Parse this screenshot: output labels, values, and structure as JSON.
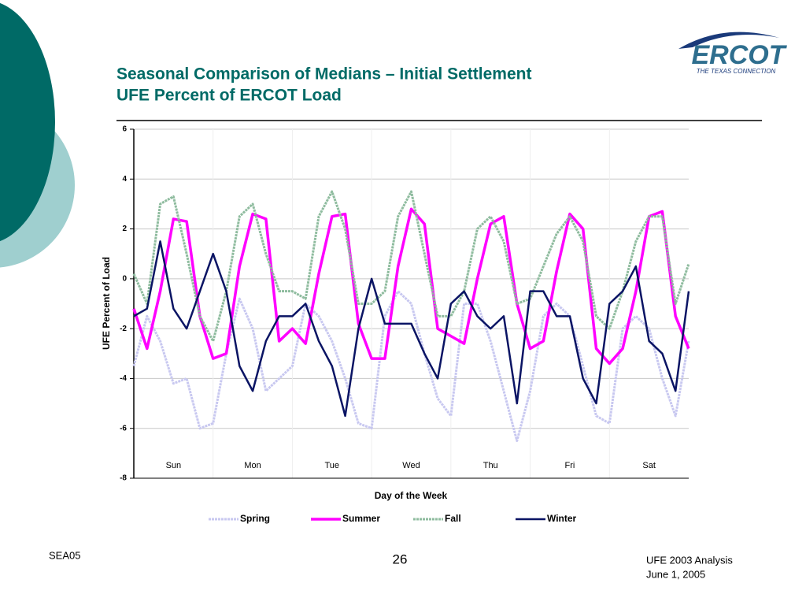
{
  "slide": {
    "title_line1": "Seasonal Comparison of Medians – Initial Settlement",
    "title_line2": "UFE Percent of ERCOT Load",
    "logo": "ERCOT",
    "logo_tagline": "THE TEXAS CONNECTION",
    "footer_left": "SEA05",
    "page_number": "26",
    "footer_right_line1": "UFE 2003 Analysis",
    "footer_right_line2": "June 1, 2005"
  },
  "chart_data": {
    "type": "line",
    "x_label": "Day of the Week",
    "y_label": "UFE Percent of Load",
    "x": [
      0,
      4,
      8,
      12,
      16,
      20,
      24,
      28,
      32,
      36,
      40,
      44,
      48,
      52,
      56,
      60,
      64,
      68,
      72,
      76,
      80,
      84,
      88,
      92,
      96,
      100,
      104,
      108,
      112,
      116,
      120,
      124,
      128,
      132,
      136,
      140,
      144,
      148,
      152,
      156,
      160,
      164,
      168
    ],
    "xlim": [
      0,
      168
    ],
    "xticks": [
      {
        "value": 12,
        "label": "Sun"
      },
      {
        "value": 36,
        "label": "Mon"
      },
      {
        "value": 60,
        "label": "Tue"
      },
      {
        "value": 84,
        "label": "Wed"
      },
      {
        "value": 108,
        "label": "Thu"
      },
      {
        "value": 132,
        "label": "Fri"
      },
      {
        "value": 156,
        "label": "Sat"
      }
    ],
    "ylim": [
      -8,
      6
    ],
    "yticks": [
      -8,
      -6,
      -4,
      -2,
      0,
      2,
      4,
      6
    ],
    "grid": true,
    "legend": "bottom",
    "series": [
      {
        "name": "Spring",
        "color": "#c8c8f0",
        "values": [
          -3.5,
          -1.5,
          -2.5,
          -4.2,
          -4.0,
          -6.0,
          -5.8,
          -3.0,
          -0.8,
          -2.0,
          -4.5,
          -4.0,
          -3.5,
          -1.0,
          -1.5,
          -2.5,
          -4.0,
          -5.8,
          -6.0,
          -1.5,
          -0.5,
          -1.0,
          -3.0,
          -4.8,
          -5.5,
          -1.0,
          -1.0,
          -2.5,
          -4.5,
          -6.5,
          -4.5,
          -1.5,
          -1.0,
          -1.5,
          -3.5,
          -5.5,
          -5.8,
          -2.0,
          -1.5,
          -2.0,
          -4.0,
          -5.5,
          -2.5
        ]
      },
      {
        "name": "Summer",
        "color": "#ff00ff",
        "values": [
          -1.2,
          -2.8,
          -0.5,
          2.4,
          2.3,
          -1.5,
          -3.2,
          -3.0,
          0.5,
          2.6,
          2.4,
          -2.5,
          -2.0,
          -2.6,
          0.2,
          2.5,
          2.6,
          -1.8,
          -3.2,
          -3.2,
          0.5,
          2.8,
          2.2,
          -2.0,
          -2.3,
          -2.6,
          0.0,
          2.2,
          2.5,
          -1.0,
          -2.8,
          -2.5,
          0.3,
          2.6,
          2.0,
          -2.8,
          -3.4,
          -2.8,
          -0.5,
          2.5,
          2.7,
          -1.5,
          -2.8
        ]
      },
      {
        "name": "Fall",
        "color": "#8fbc9f",
        "values": [
          0.2,
          -1.0,
          3.0,
          3.3,
          1.0,
          -1.5,
          -2.5,
          -0.5,
          2.5,
          3.0,
          1.0,
          -0.5,
          -0.5,
          -0.8,
          2.5,
          3.5,
          2.0,
          -1.0,
          -1.0,
          -0.5,
          2.5,
          3.5,
          1.0,
          -1.5,
          -1.5,
          -0.5,
          2.0,
          2.5,
          1.5,
          -1.0,
          -0.8,
          0.5,
          1.8,
          2.5,
          1.5,
          -1.5,
          -2.0,
          -0.5,
          1.5,
          2.5,
          2.5,
          -1.0,
          0.6
        ]
      },
      {
        "name": "Winter",
        "color": "#0a1464",
        "values": [
          -1.5,
          -1.2,
          1.5,
          -1.2,
          -2.0,
          -0.5,
          1.0,
          -0.5,
          -3.5,
          -4.5,
          -2.5,
          -1.5,
          -1.5,
          -1.0,
          -2.5,
          -3.5,
          -5.5,
          -2.0,
          0.0,
          -1.8,
          -1.8,
          -1.8,
          -3.0,
          -4.0,
          -1.0,
          -0.5,
          -1.5,
          -2.0,
          -1.5,
          -5.0,
          -0.5,
          -0.5,
          -1.5,
          -1.5,
          -4.0,
          -5.0,
          -1.0,
          -0.5,
          0.5,
          -2.5,
          -3.0,
          -4.5,
          -0.5
        ]
      }
    ]
  }
}
